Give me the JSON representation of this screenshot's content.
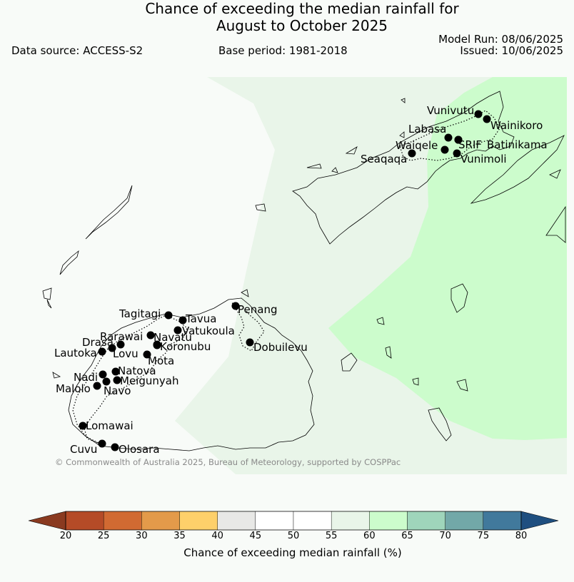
{
  "title": {
    "line1": "Chance of exceeding the median rainfall for",
    "line2": "August to October 2025"
  },
  "header": {
    "data_source": "Data source: ACCESS-S2",
    "base_period": "Base period: 1981-2018",
    "model_run": "Model Run: 08/06/2025",
    "issued": "Issued: 10/06/2025"
  },
  "copyright": "© Commonwealth of Australia 2025, Bureau of Meteorology, supported by COSPPac",
  "stations": [
    "Vunivutu",
    "Wainikoro",
    "Labasa",
    "Waiqele",
    "SRIF",
    "Batinikama",
    "Seaqaqa",
    "Vunimoli",
    "Penang",
    "Tagitagi",
    "Tavua",
    "Vatukoula",
    "Rarawai",
    "Navatu",
    "Drasa",
    "Koronubu",
    "Lautoka",
    "Lovu",
    "Mota",
    "Dobuilevu",
    "Natova",
    "Nadi",
    "Meigunyah",
    "Malolo",
    "Navo",
    "Lomawai",
    "Cuvu",
    "Olosara"
  ],
  "colorbar": {
    "title": "Chance of exceeding median rainfall (%)",
    "ticks": [
      "20",
      "25",
      "30",
      "35",
      "40",
      "45",
      "50",
      "55",
      "60",
      "65",
      "70",
      "75",
      "80"
    ],
    "colors": [
      "#b54b27",
      "#d16a32",
      "#e39a4a",
      "#fed06a",
      "#e8e8e6",
      "#ffffff",
      "#ffffff",
      "#e9f5e9",
      "#ccfccc",
      "#9fd5bb",
      "#72a8a8",
      "#41799c"
    ],
    "under_color": "#8a3a20",
    "over_color": "#1f4f80"
  },
  "map_colors": {
    "near_median": "#f8fbf8",
    "light": "#e9f5e9",
    "above": "#ccfccc"
  }
}
